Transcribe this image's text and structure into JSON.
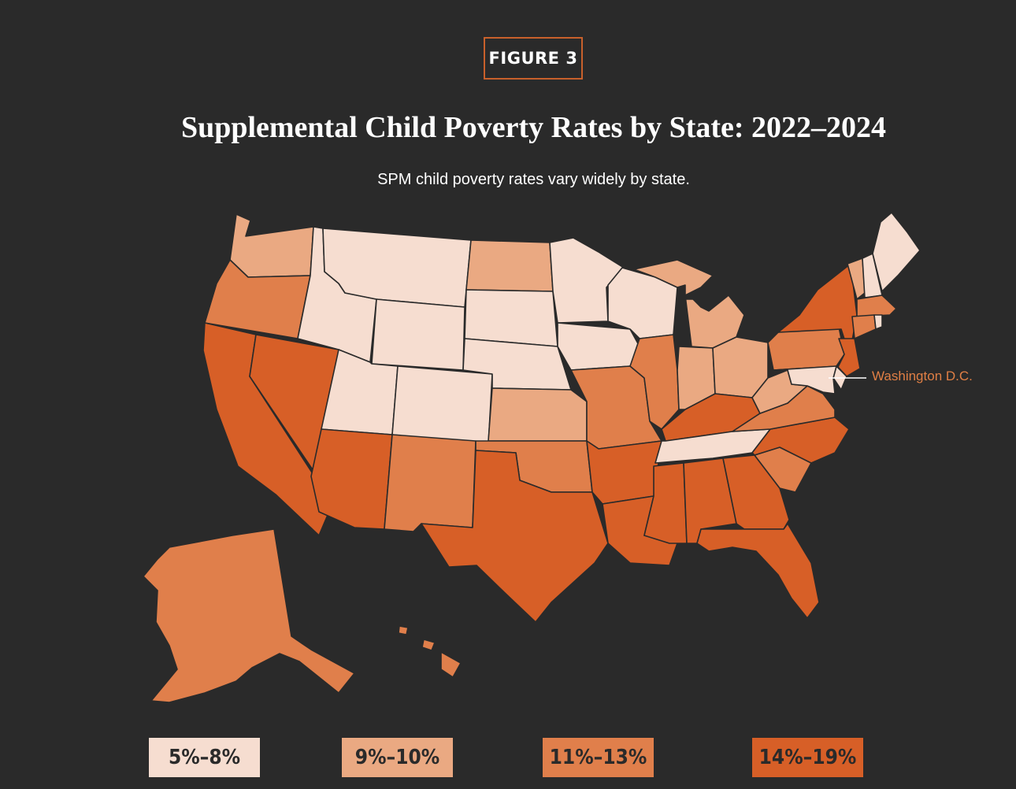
{
  "figure_label": "FIGURE 3",
  "title": "Supplemental Child Poverty Rates by State: 2022–2024",
  "subtitle": "SPM child poverty rates vary widely by state.",
  "annotation": "Washington D.C.",
  "colors": {
    "background": "#2a2a2a",
    "c1": "#f6ddd0",
    "c2": "#eaa982",
    "c3": "#e07f4b",
    "c4": "#d75f27"
  },
  "legend": [
    {
      "label": "5%–8%",
      "color": "#f6ddd0"
    },
    {
      "label": "9%–10%",
      "color": "#eaa982"
    },
    {
      "label": "11%–13%",
      "color": "#e07f4b"
    },
    {
      "label": "14%–19%",
      "color": "#d75f27"
    }
  ],
  "states": {
    "WA": 2,
    "OR": 3,
    "CA": 4,
    "NV": 4,
    "ID": 1,
    "MT": 1,
    "WY": 1,
    "UT": 1,
    "CO": 1,
    "AZ": 4,
    "NM": 3,
    "ND": 2,
    "SD": 1,
    "NE": 1,
    "KS": 2,
    "OK": 3,
    "TX": 4,
    "MN": 1,
    "IA": 1,
    "MO": 3,
    "AR": 4,
    "LA": 4,
    "WI": 1,
    "IL": 3,
    "MI": 2,
    "IN": 2,
    "OH": 2,
    "KY": 4,
    "TN": 1,
    "MS": 4,
    "AL": 4,
    "GA": 4,
    "FL": 4,
    "SC": 3,
    "NC": 4,
    "VA": 3,
    "WV": 2,
    "PA": 3,
    "NY": 4,
    "VT": 2,
    "NH": 1,
    "ME": 1,
    "MA": 3,
    "CT": 3,
    "RI": 1,
    "NJ": 4,
    "DE": 1,
    "MD": 1,
    "AK": 3,
    "HI": 3
  }
}
